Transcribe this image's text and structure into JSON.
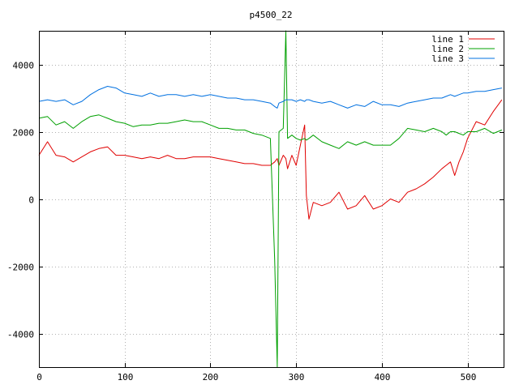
{
  "chart_data": {
    "type": "line",
    "title": "p4500_22",
    "xlabel": "",
    "ylabel": "",
    "xlim": [
      0,
      542
    ],
    "ylim": [
      -5000,
      5000
    ],
    "grid": true,
    "legend_position": "top-right",
    "x_ticks": [
      0,
      100,
      200,
      300,
      400,
      500
    ],
    "y_ticks": [
      -4000,
      -2000,
      0,
      2000,
      4000
    ],
    "x_tick_labels": [
      "0",
      "100",
      "200",
      "300",
      "400",
      "500"
    ],
    "y_tick_labels": [
      "-4000",
      "-2000",
      "0",
      "2000",
      "4000"
    ],
    "x": [
      0,
      10,
      20,
      30,
      40,
      50,
      60,
      70,
      80,
      90,
      100,
      110,
      120,
      130,
      140,
      150,
      160,
      170,
      180,
      190,
      200,
      210,
      220,
      230,
      240,
      250,
      260,
      270,
      275,
      278,
      280,
      285,
      288,
      290,
      295,
      300,
      305,
      310,
      312,
      315,
      320,
      330,
      340,
      350,
      360,
      370,
      380,
      390,
      400,
      410,
      420,
      430,
      440,
      450,
      460,
      470,
      475,
      480,
      485,
      490,
      495,
      500,
      510,
      520,
      530,
      540
    ],
    "series": [
      {
        "name": "line 1",
        "color": "#e00000",
        "values": [
          1300,
          1700,
          1300,
          1250,
          1100,
          1250,
          1400,
          1500,
          1550,
          1300,
          1300,
          1250,
          1200,
          1250,
          1200,
          1300,
          1200,
          1200,
          1250,
          1250,
          1250,
          1200,
          1150,
          1100,
          1050,
          1050,
          1000,
          1000,
          1100,
          1200,
          1000,
          1300,
          1200,
          900,
          1300,
          1000,
          1600,
          2200,
          100,
          -600,
          -100,
          -200,
          -100,
          200,
          -300,
          -200,
          100,
          -300,
          -200,
          0,
          -100,
          200,
          300,
          450,
          650,
          900,
          1000,
          1100,
          700,
          1100,
          1400,
          1800,
          2300,
          2200,
          2600,
          2950
        ]
      },
      {
        "name": "line 2",
        "color": "#00a000",
        "values": [
          2400,
          2450,
          2200,
          2300,
          2100,
          2300,
          2450,
          2500,
          2400,
          2300,
          2250,
          2150,
          2200,
          2200,
          2250,
          2250,
          2300,
          2350,
          2300,
          2300,
          2200,
          2100,
          2100,
          2050,
          2050,
          1950,
          1900,
          1800,
          -1800,
          -5000,
          2000,
          2100,
          5000,
          1800,
          1900,
          1800,
          1750,
          1800,
          1750,
          1800,
          1900,
          1700,
          1600,
          1500,
          1700,
          1600,
          1700,
          1600,
          1600,
          1600,
          1800,
          2100,
          2050,
          2000,
          2100,
          2000,
          1900,
          2000,
          2000,
          1950,
          1900,
          2000,
          2000,
          2100,
          1950,
          2050
        ]
      },
      {
        "name": "line 3",
        "color": "#0070e0",
        "values": [
          2900,
          2950,
          2900,
          2950,
          2800,
          2900,
          3100,
          3250,
          3350,
          3300,
          3150,
          3100,
          3050,
          3150,
          3050,
          3100,
          3100,
          3050,
          3100,
          3050,
          3100,
          3050,
          3000,
          3000,
          2950,
          2950,
          2900,
          2850,
          2750,
          2700,
          2850,
          2900,
          2950,
          2950,
          2950,
          2900,
          2950,
          2900,
          2950,
          2950,
          2900,
          2850,
          2900,
          2800,
          2700,
          2800,
          2750,
          2900,
          2800,
          2800,
          2750,
          2850,
          2900,
          2950,
          3000,
          3000,
          3050,
          3100,
          3050,
          3100,
          3150,
          3150,
          3200,
          3200,
          3250,
          3300
        ]
      }
    ]
  }
}
